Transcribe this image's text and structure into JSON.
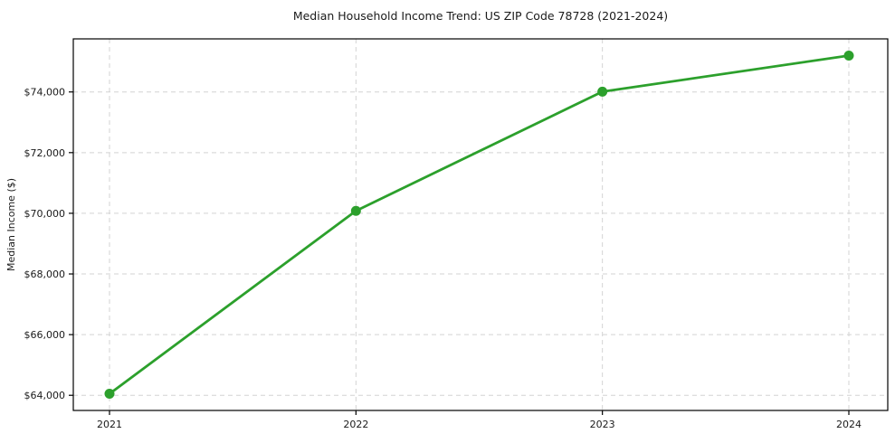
{
  "chart_data": {
    "type": "line",
    "title": "Median Household Income Trend: US ZIP Code 78728 (2021-2024)",
    "xlabel": "",
    "ylabel": "Median Income ($)",
    "categories": [
      "2021",
      "2022",
      "2023",
      "2024"
    ],
    "series": [
      {
        "name": "Median household income",
        "values": [
          64050,
          70080,
          74010,
          75200
        ]
      }
    ],
    "yticks": [
      64000,
      66000,
      68000,
      70000,
      72000,
      74000
    ],
    "ytick_labels": [
      "$64,000",
      "$66,000",
      "$68,000",
      "$70,000",
      "$72,000",
      "$74,000"
    ],
    "ylim": [
      63500,
      75750
    ],
    "grid": "dashed-both-axes",
    "grid_color": "#d3d3d3",
    "line_color": "#2ca02c",
    "marker": "circle",
    "frame_color": "#000000",
    "background_color": "#ffffff",
    "legend": "none"
  }
}
